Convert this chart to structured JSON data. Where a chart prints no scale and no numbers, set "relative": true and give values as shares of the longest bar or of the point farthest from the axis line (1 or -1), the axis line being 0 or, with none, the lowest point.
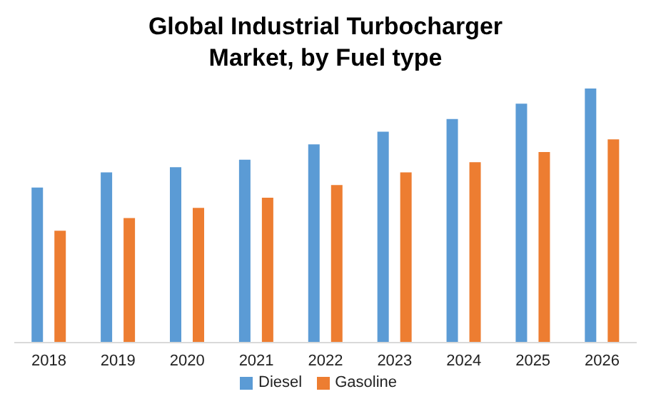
{
  "chart_data": {
    "type": "bar",
    "title": "Global Industrial Turbocharger Market, by Fuel type",
    "relative": true,
    "categories": [
      "2018",
      "2019",
      "2020",
      "2021",
      "2022",
      "2023",
      "2024",
      "2025",
      "2026"
    ],
    "series": [
      {
        "name": "Diesel",
        "color": "#5b9bd5",
        "values": [
          0.61,
          0.67,
          0.69,
          0.72,
          0.78,
          0.83,
          0.88,
          0.94,
          1
        ]
      },
      {
        "name": "Gasoline",
        "color": "#ed7d31",
        "values": [
          0.44,
          0.49,
          0.53,
          0.57,
          0.62,
          0.67,
          0.71,
          0.75,
          0.8
        ]
      }
    ],
    "legend": "bottom",
    "grid": false
  }
}
